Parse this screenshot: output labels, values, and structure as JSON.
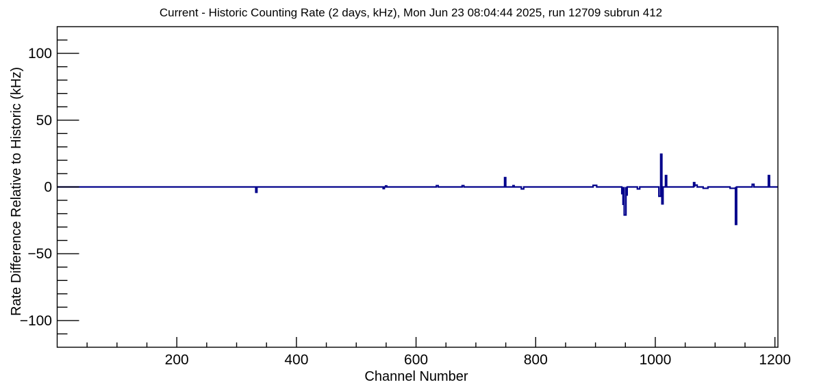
{
  "chart_data": {
    "type": "line",
    "subtype": "step-histogram",
    "title": "Current - Historic Counting Rate (2 days, kHz), Mon Jun 23 08:04:44 2025, run 12709 subrun 412",
    "xlabel": "Channel Number",
    "ylabel": "Rate Difference Relative to Historic (kHz)",
    "xlim": [
      0,
      1205
    ],
    "ylim": [
      -120,
      120
    ],
    "grid": false,
    "legend": false,
    "baseline_value": 0,
    "line_color": "#00008b",
    "axis_color": "#000000",
    "background_color": "#ffffff",
    "x_major_ticks": [
      {
        "value": 200,
        "label": "200"
      },
      {
        "value": 400,
        "label": "400"
      },
      {
        "value": 600,
        "label": "600"
      },
      {
        "value": 800,
        "label": "800"
      },
      {
        "value": 1000,
        "label": "1000"
      },
      {
        "value": 1200,
        "label": "1200"
      }
    ],
    "x_minor_step": 50,
    "y_major_ticks": [
      {
        "value": 100,
        "label": "100"
      },
      {
        "value": 50,
        "label": "50"
      },
      {
        "value": 0,
        "label": "0"
      },
      {
        "value": -50,
        "label": "−50"
      },
      {
        "value": -100,
        "label": "−100"
      }
    ],
    "y_minor_step": 10,
    "deviations": [
      {
        "channel_start": 332,
        "channel_end": 334,
        "value": -4
      },
      {
        "channel_start": 545,
        "channel_end": 547,
        "value": -1.2
      },
      {
        "channel_start": 549,
        "channel_end": 551,
        "value": 0.8
      },
      {
        "channel_start": 634,
        "channel_end": 637,
        "value": 1
      },
      {
        "channel_start": 677,
        "channel_end": 680,
        "value": 1
      },
      {
        "channel_start": 748,
        "channel_end": 750,
        "value": 7
      },
      {
        "channel_start": 762,
        "channel_end": 764,
        "value": 1
      },
      {
        "channel_start": 776,
        "channel_end": 780,
        "value": -1.5
      },
      {
        "channel_start": 896,
        "channel_end": 902,
        "value": 1.2
      },
      {
        "channel_start": 944,
        "channel_end": 946,
        "value": -5
      },
      {
        "channel_start": 946,
        "channel_end": 948,
        "value": -13
      },
      {
        "channel_start": 948,
        "channel_end": 951,
        "value": -21
      },
      {
        "channel_start": 951,
        "channel_end": 953,
        "value": -6
      },
      {
        "channel_start": 970,
        "channel_end": 974,
        "value": -1.5
      },
      {
        "channel_start": 1006,
        "channel_end": 1009,
        "value": -7
      },
      {
        "channel_start": 1009,
        "channel_end": 1011,
        "value": 24.5
      },
      {
        "channel_start": 1011,
        "channel_end": 1013,
        "value": -12.7
      },
      {
        "channel_start": 1017,
        "channel_end": 1019,
        "value": 8.5
      },
      {
        "channel_start": 1064,
        "channel_end": 1066,
        "value": 3.2
      },
      {
        "channel_start": 1066,
        "channel_end": 1070,
        "value": 1.4
      },
      {
        "channel_start": 1080,
        "channel_end": 1088,
        "value": -1
      },
      {
        "channel_start": 1125,
        "channel_end": 1134,
        "value": -1
      },
      {
        "channel_start": 1134,
        "channel_end": 1136,
        "value": -28
      },
      {
        "channel_start": 1162,
        "channel_end": 1165,
        "value": 2
      },
      {
        "channel_start": 1189,
        "channel_end": 1191,
        "value": 8.5
      }
    ]
  }
}
